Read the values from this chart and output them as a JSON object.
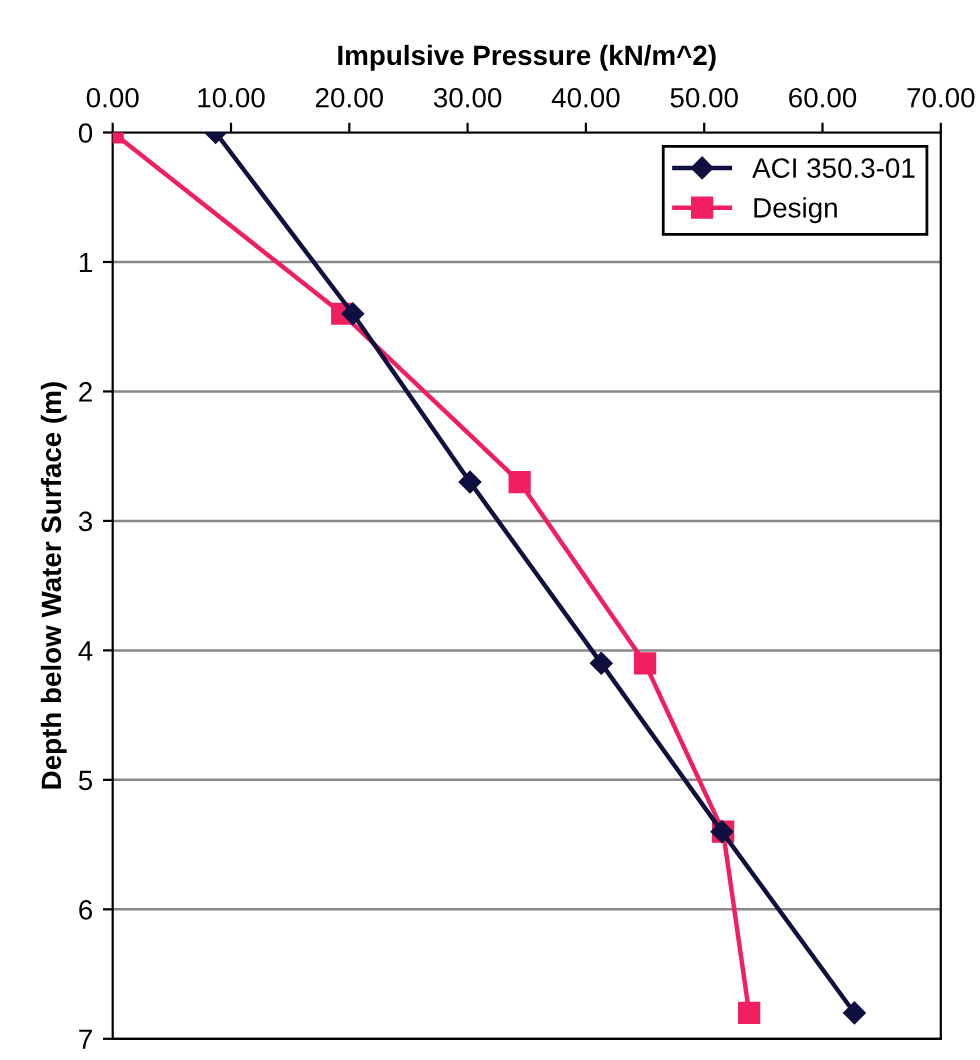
{
  "chart_data": {
    "type": "line",
    "xlabel": "Impulsive Pressure (kN/m^2)",
    "ylabel": "Depth below Water Surface (m)",
    "xlim": [
      0,
      70
    ],
    "xticks": [
      {
        "value": 0,
        "label": "0.00"
      },
      {
        "value": 10,
        "label": "10.00"
      },
      {
        "value": 20,
        "label": "20.00"
      },
      {
        "value": 30,
        "label": "30.00"
      },
      {
        "value": 40,
        "label": "40.00"
      },
      {
        "value": 50,
        "label": "50.00"
      },
      {
        "value": 60,
        "label": "60.00"
      },
      {
        "value": 70,
        "label": "70.00"
      }
    ],
    "ylim": [
      7,
      0
    ],
    "yticks": [
      0,
      1,
      2,
      3,
      4,
      5,
      6,
      7
    ],
    "grid": "y",
    "legend": "top right",
    "series": [
      {
        "name": "ACI 350.3-01",
        "color": "#101040",
        "marker": "diamond",
        "x": [
          8.7,
          20.3,
          30.2,
          41.3,
          51.5,
          62.7
        ],
        "values": [
          0,
          1.4,
          2.7,
          4.1,
          5.4,
          6.8
        ]
      },
      {
        "name": "Design",
        "color": "#f02060",
        "marker": "square",
        "x": [
          0,
          19.4,
          34.4,
          45.0,
          51.6,
          53.8
        ],
        "values": [
          0,
          1.4,
          2.7,
          4.1,
          5.4,
          6.8
        ]
      }
    ]
  }
}
